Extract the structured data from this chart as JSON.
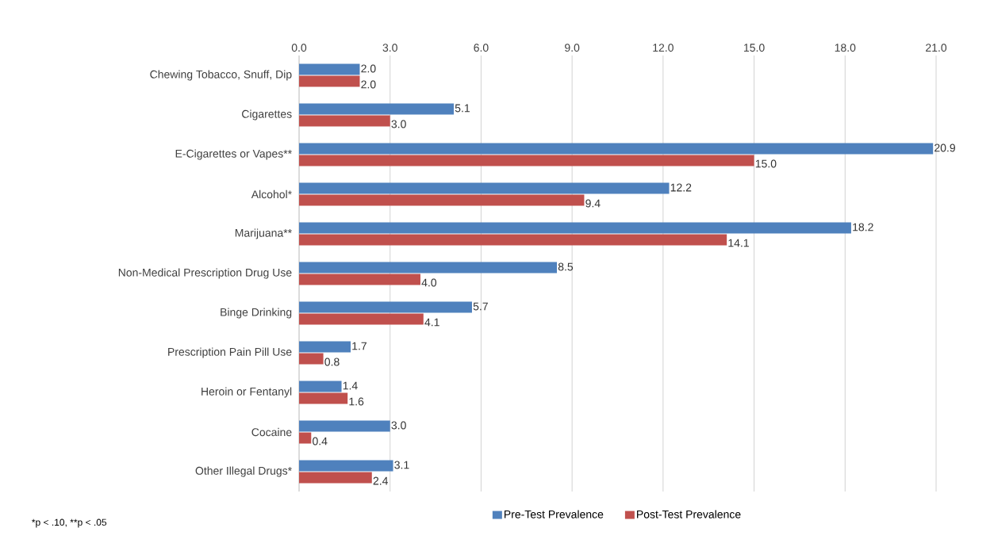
{
  "chart_data": {
    "type": "bar",
    "orientation": "horizontal",
    "categories": [
      "Chewing Tobacco, Snuff, Dip",
      "Cigarettes",
      "E-Cigarettes or Vapes**",
      "Alcohol*",
      "Marijuana**",
      "Non-Medical Prescription Drug Use",
      "Binge Drinking",
      "Prescription Pain Pill Use",
      "Heroin or Fentanyl",
      "Cocaine",
      "Other Illegal Drugs*"
    ],
    "series": [
      {
        "name": "Pre-Test Prevalence",
        "color": "#4f81bd",
        "values": [
          2.0,
          5.1,
          20.9,
          12.2,
          18.2,
          8.5,
          5.7,
          1.7,
          1.4,
          3.0,
          3.1
        ],
        "value_labels": [
          "2.0",
          "5.1",
          "20.9",
          "12.2",
          "18.2",
          "8.5",
          "5.7",
          "1.7",
          "1.4",
          "3.0",
          "3.1"
        ]
      },
      {
        "name": "Post-Test Prevalence",
        "color": "#c0504d",
        "values": [
          2.0,
          3.0,
          15.0,
          9.4,
          14.1,
          4.0,
          4.1,
          0.8,
          1.6,
          0.4,
          2.4
        ],
        "value_labels": [
          "2.0",
          "3.0",
          "15.0",
          "9.4",
          "14.1",
          "4.0",
          "4.1",
          "0.8",
          "1.6",
          "0.4",
          "2.4"
        ]
      }
    ],
    "xlim": [
      0,
      21
    ],
    "xticks": [
      {
        "value": 0,
        "label": "0.0"
      },
      {
        "value": 3,
        "label": "3.0"
      },
      {
        "value": 6,
        "label": "6.0"
      },
      {
        "value": 9,
        "label": "9.0"
      },
      {
        "value": 12,
        "label": "12.0"
      },
      {
        "value": 15,
        "label": "15.0"
      },
      {
        "value": 18,
        "label": "18.0"
      },
      {
        "value": 21,
        "label": "21.0"
      }
    ],
    "grid": "x",
    "legend": "bottom",
    "annotations": [
      "*p < .10, **p < .05"
    ]
  }
}
